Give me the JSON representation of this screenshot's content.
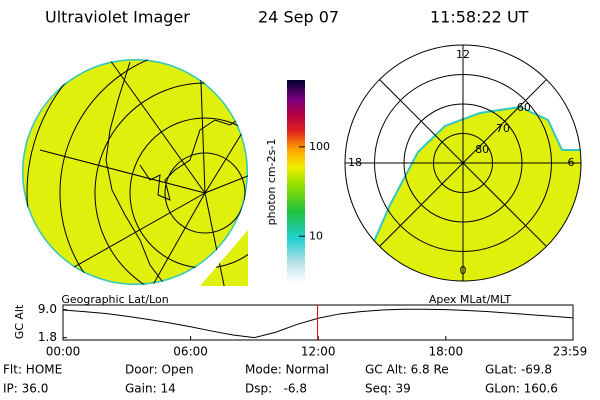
{
  "header": {
    "title": "Ultraviolet Imager",
    "date": "24 Sep 07",
    "time": "11:58:22 UT"
  },
  "colorbar": {
    "label": "photon cm-2s-1",
    "scale": "log",
    "lim": [
      3,
      560
    ],
    "ticks": [
      10,
      100
    ]
  },
  "geo_panel": {
    "caption": "Geographic Lat/Lon"
  },
  "polar": {
    "caption": "Apex MLat/MLT",
    "lat_lim": [
      50,
      90
    ],
    "rings": [
      80,
      70,
      60
    ],
    "mlt_ticks": [
      12,
      18,
      6,
      0
    ]
  },
  "chart_data": {
    "type": "line",
    "y_label": "GC Alt",
    "x": [
      0,
      1,
      2,
      3,
      4,
      5,
      6,
      7,
      8,
      9,
      10,
      11,
      12,
      13,
      14,
      15,
      16,
      17,
      18,
      19,
      20,
      21,
      22,
      23,
      23.98
    ],
    "series": [
      {
        "name": "GC Alt",
        "color": "#000000",
        "values": [
          8.9,
          8.5,
          8.0,
          7.3,
          6.5,
          5.6,
          4.6,
          3.5,
          2.5,
          1.8,
          3.2,
          5.2,
          6.8,
          7.9,
          8.5,
          8.9,
          9.1,
          9.1,
          9.0,
          8.8,
          8.5,
          8.1,
          7.7,
          7.3,
          6.9
        ]
      }
    ],
    "xlim": [
      0,
      23.98
    ],
    "ylim": [
      1.2,
      10.2
    ],
    "xticks": [
      {
        "value": 0,
        "label": "00:00"
      },
      {
        "value": 6,
        "label": "06:00"
      },
      {
        "value": 12,
        "label": "12:00"
      },
      {
        "value": 18,
        "label": "18:00"
      },
      {
        "value": 23.98,
        "label": "23:59"
      }
    ],
    "yticks": [
      {
        "value": 9.0,
        "label": "9.0"
      },
      {
        "value": 1.8,
        "label": "1.8"
      }
    ],
    "current_hour": 11.97,
    "marker_color": "#e00000"
  },
  "footer": {
    "rows": [
      [
        "Flt: HOME",
        "Door: Open",
        "Mode: Normal",
        "GC Alt: 6.8 Re",
        "GLat: -69.8"
      ],
      [
        "IP: 36.0",
        "Gain: 14",
        "Dsp:   -6.8",
        "Seq: 39",
        "GLon: 160.6"
      ]
    ]
  }
}
